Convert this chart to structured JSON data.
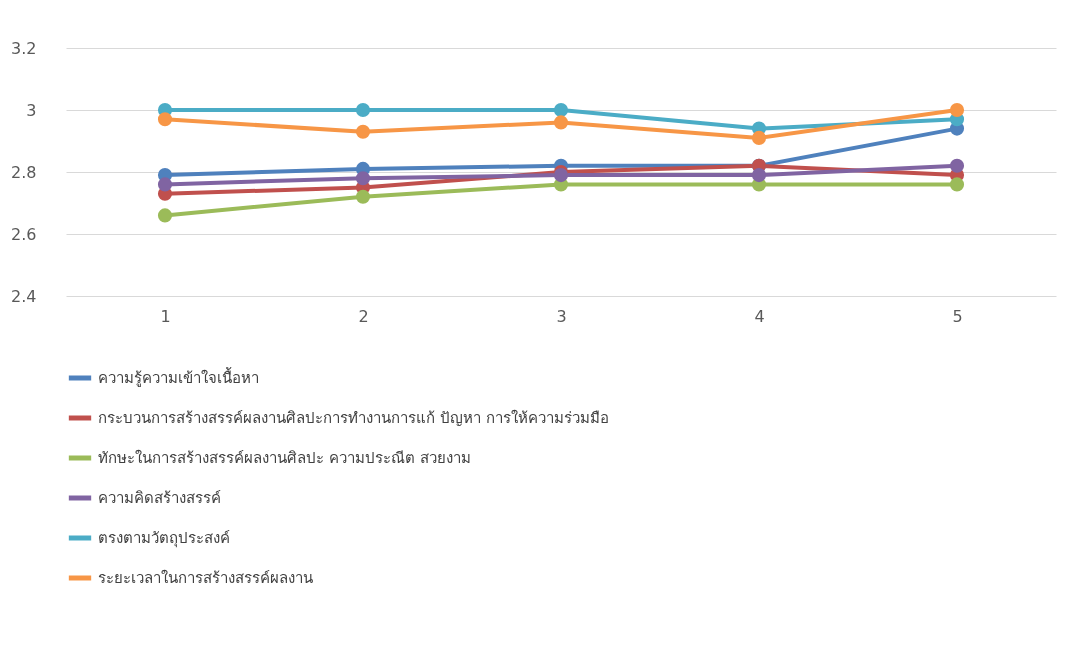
{
  "chart_data": {
    "type": "line",
    "categories": [
      "1",
      "2",
      "3",
      "4",
      "5"
    ],
    "series": [
      {
        "name": "ความรู้ความเข้าใจเนื้อหา",
        "color": "#4f81bd",
        "values": [
          2.79,
          2.81,
          2.82,
          2.82,
          2.94
        ]
      },
      {
        "name": "กระบวนการสร้างสรรค์ผลงานศิลปะการทำงานการแก้ ปัญหา การให้ความร่วมมือ",
        "color": "#c0504d",
        "values": [
          2.73,
          2.75,
          2.8,
          2.82,
          2.79
        ]
      },
      {
        "name": "ทักษะในการสร้างสรรค์ผลงานศิลปะ ความประณีต สวยงาม",
        "color": "#9bbb59",
        "values": [
          2.66,
          2.72,
          2.76,
          2.76,
          2.76
        ]
      },
      {
        "name": "ความคิดสร้างสรรค์",
        "color": "#8064a2",
        "values": [
          2.76,
          2.78,
          2.79,
          2.79,
          2.82
        ]
      },
      {
        "name": "ตรงตามวัตถุประสงค์",
        "color": "#4bacc6",
        "values": [
          3.0,
          3.0,
          3.0,
          2.94,
          2.97
        ]
      },
      {
        "name": "ระยะเวลาในการสร้างสรรค์ผลงาน",
        "color": "#f79646",
        "values": [
          2.97,
          2.93,
          2.96,
          2.91,
          3.0
        ]
      }
    ],
    "ylim": [
      2.4,
      3.2
    ],
    "yticks": [
      2.4,
      2.6,
      2.8,
      3,
      3.2
    ],
    "grid": "y",
    "legend": "bottom",
    "marker": "circle",
    "line_style": "solid"
  }
}
